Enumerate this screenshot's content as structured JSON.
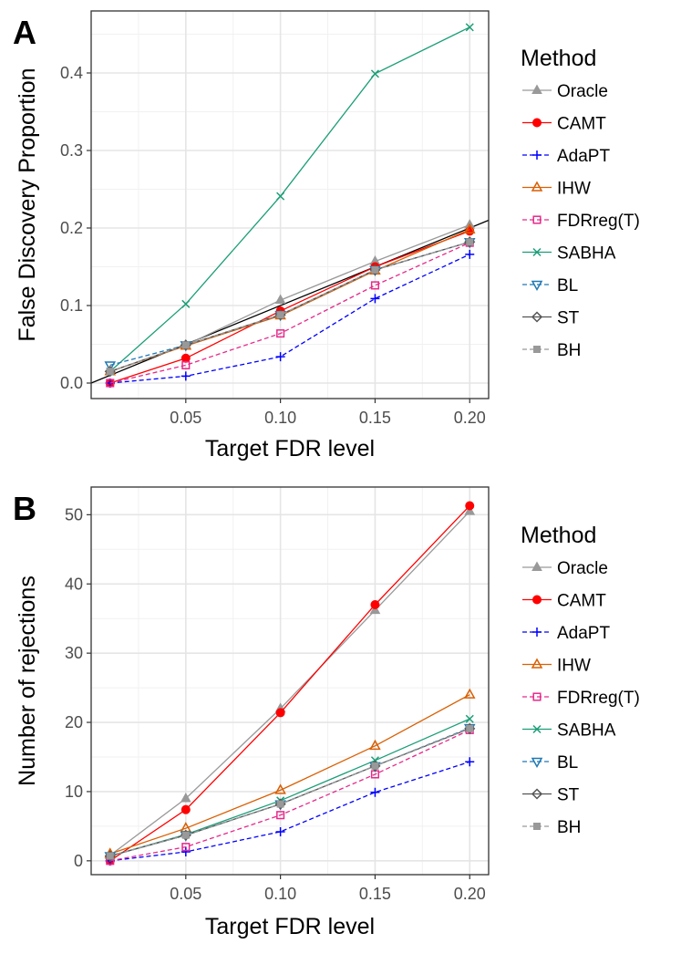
{
  "chart_data": [
    {
      "type": "line",
      "panel_label": "A",
      "xlabel": "Target FDR level",
      "ylabel": "False Discovery Proportion",
      "x": [
        0.01,
        0.05,
        0.1,
        0.15,
        0.2
      ],
      "xlim": [
        0.0,
        0.21
      ],
      "ylim": [
        -0.02,
        0.48
      ],
      "xticks": [
        0.05,
        0.1,
        0.15,
        0.2
      ],
      "xtick_labels": [
        "0.05",
        "0.10",
        "0.15",
        "0.20"
      ],
      "yticks": [
        0.0,
        0.1,
        0.2,
        0.3,
        0.4
      ],
      "ytick_labels": [
        "0.0",
        "0.1",
        "0.2",
        "0.3",
        "0.4"
      ],
      "reference_line": "y = x",
      "grid": true,
      "legend_title": "Method",
      "legend_position": "right",
      "series": [
        {
          "name": "Oracle",
          "color": "#999999",
          "dash": "solid",
          "marker": "triangle",
          "values": [
            0.015,
            0.049,
            0.107,
            0.157,
            0.204
          ]
        },
        {
          "name": "CAMT",
          "color": "#ff0000",
          "dash": "solid",
          "marker": "circle",
          "values": [
            0.0,
            0.032,
            0.093,
            0.15,
            0.196
          ]
        },
        {
          "name": "AdaPT",
          "color": "#0000ff",
          "dash": "dashed",
          "marker": "plus",
          "values": [
            0.0,
            0.009,
            0.034,
            0.109,
            0.166
          ]
        },
        {
          "name": "IHW",
          "color": "#d95f02",
          "dash": "solid",
          "marker": "triangle-open",
          "values": [
            0.015,
            0.048,
            0.087,
            0.145,
            0.198
          ]
        },
        {
          "name": "FDRreg(T)",
          "color": "#e7298a",
          "dash": "dashed",
          "marker": "square-open",
          "values": [
            0.0,
            0.023,
            0.064,
            0.126,
            0.181
          ]
        },
        {
          "name": "SABHA",
          "color": "#1b9e77",
          "dash": "solid",
          "marker": "x",
          "values": [
            0.015,
            0.102,
            0.241,
            0.399,
            0.459
          ]
        },
        {
          "name": "BL",
          "color": "#1f78b4",
          "dash": "dashed",
          "marker": "triangle-down-open",
          "values": [
            0.023,
            0.049,
            0.088,
            0.146,
            0.182
          ]
        },
        {
          "name": "ST",
          "color": "#555555",
          "dash": "solid",
          "marker": "diamond-open",
          "values": [
            0.015,
            0.049,
            0.088,
            0.146,
            0.182
          ]
        },
        {
          "name": "BH",
          "color": "#999999",
          "dash": "dashed",
          "marker": "square",
          "values": [
            0.015,
            0.049,
            0.088,
            0.146,
            0.182
          ]
        }
      ]
    },
    {
      "type": "line",
      "panel_label": "B",
      "xlabel": "Target FDR level",
      "ylabel": "Number of rejections",
      "x": [
        0.01,
        0.05,
        0.1,
        0.15,
        0.2
      ],
      "xlim": [
        0.0,
        0.21
      ],
      "ylim": [
        -2,
        54
      ],
      "xticks": [
        0.05,
        0.1,
        0.15,
        0.2
      ],
      "xtick_labels": [
        "0.05",
        "0.10",
        "0.15",
        "0.20"
      ],
      "yticks": [
        0,
        10,
        20,
        30,
        40,
        50
      ],
      "ytick_labels": [
        "0",
        "10",
        "20",
        "30",
        "40",
        "50"
      ],
      "reference_line": "",
      "grid": true,
      "legend_title": "Method",
      "legend_position": "right",
      "series": [
        {
          "name": "Oracle",
          "color": "#999999",
          "dash": "solid",
          "marker": "triangle",
          "values": [
            0.8,
            9.0,
            22.0,
            36.2,
            50.5
          ]
        },
        {
          "name": "CAMT",
          "color": "#ff0000",
          "dash": "solid",
          "marker": "circle",
          "values": [
            0.0,
            7.4,
            21.4,
            37.0,
            51.3
          ]
        },
        {
          "name": "AdaPT",
          "color": "#0000ff",
          "dash": "dashed",
          "marker": "plus",
          "values": [
            0.0,
            1.3,
            4.2,
            9.9,
            14.3
          ]
        },
        {
          "name": "IHW",
          "color": "#d95f02",
          "dash": "solid",
          "marker": "triangle-open",
          "values": [
            1.0,
            4.7,
            10.2,
            16.6,
            24.0
          ]
        },
        {
          "name": "FDRreg(T)",
          "color": "#e7298a",
          "dash": "dashed",
          "marker": "square-open",
          "values": [
            0.0,
            2.0,
            6.6,
            12.5,
            18.9
          ]
        },
        {
          "name": "SABHA",
          "color": "#1b9e77",
          "dash": "solid",
          "marker": "x",
          "values": [
            0.7,
            3.8,
            8.7,
            14.5,
            20.5
          ]
        },
        {
          "name": "BL",
          "color": "#1f78b4",
          "dash": "dashed",
          "marker": "triangle-down-open",
          "values": [
            0.7,
            3.7,
            8.2,
            13.7,
            19.2
          ]
        },
        {
          "name": "ST",
          "color": "#555555",
          "dash": "solid",
          "marker": "diamond-open",
          "values": [
            0.7,
            3.7,
            8.2,
            13.7,
            19.1
          ]
        },
        {
          "name": "BH",
          "color": "#999999",
          "dash": "dashed",
          "marker": "square",
          "values": [
            0.7,
            3.7,
            8.2,
            13.7,
            19.1
          ]
        }
      ]
    }
  ]
}
